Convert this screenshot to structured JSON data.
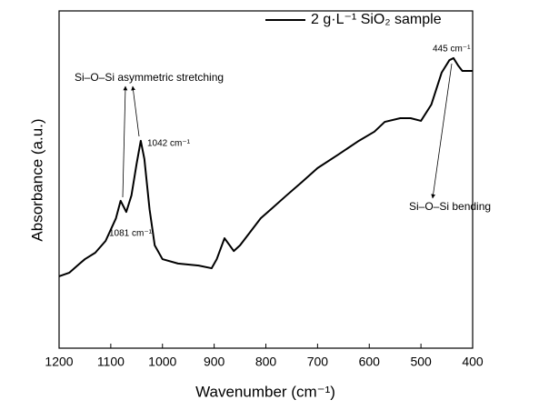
{
  "chart_data": {
    "type": "line",
    "x_label": "Wavenumber (cm⁻¹)",
    "y_label": "Absorbance (a.u.)",
    "x": [
      1200,
      1180,
      1160,
      1150,
      1130,
      1110,
      1090,
      1081,
      1070,
      1060,
      1050,
      1042,
      1035,
      1025,
      1015,
      1000,
      970,
      930,
      905,
      895,
      880,
      870,
      862,
      850,
      830,
      810,
      790,
      760,
      730,
      700,
      660,
      620,
      590,
      570,
      540,
      520,
      500,
      480,
      460,
      445,
      437,
      428,
      420,
      400
    ],
    "series": [
      {
        "name": "2 g·L⁻¹ SiO₂ sample",
        "color": "#000000",
        "values": [
          0.213,
          0.224,
          0.251,
          0.264,
          0.283,
          0.318,
          0.385,
          0.437,
          0.404,
          0.453,
          0.547,
          0.615,
          0.561,
          0.412,
          0.305,
          0.264,
          0.251,
          0.245,
          0.237,
          0.264,
          0.326,
          0.305,
          0.288,
          0.305,
          0.345,
          0.385,
          0.412,
          0.453,
          0.493,
          0.534,
          0.574,
          0.615,
          0.642,
          0.671,
          0.682,
          0.682,
          0.674,
          0.722,
          0.817,
          0.854,
          0.86,
          0.838,
          0.822,
          0.822
        ]
      }
    ],
    "xlim": [
      1200,
      400
    ],
    "xticks": [
      1200,
      1100,
      1000,
      900,
      800,
      700,
      600,
      500,
      400
    ],
    "ylim": [
      0,
      1
    ],
    "legend": "upper right",
    "annotations": [
      "Si–O–Si asymmetric stretching",
      "1042 cm⁻¹",
      "1081 cm⁻¹",
      "445 cm⁻¹",
      "Si–O–Si bending"
    ]
  }
}
